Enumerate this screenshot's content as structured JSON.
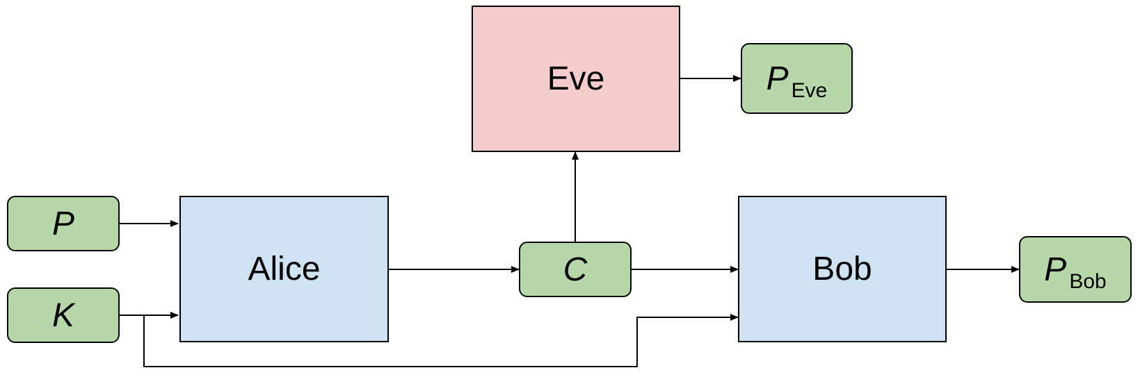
{
  "colors": {
    "agent_good": "#cfe2f3",
    "agent_adversary": "#f4cccc",
    "token": "#b6d7a8",
    "stroke": "#000000"
  },
  "nodes": {
    "alice": {
      "label": "Alice"
    },
    "bob": {
      "label": "Bob"
    },
    "eve": {
      "label": "Eve"
    },
    "plaintext": {
      "label": "P"
    },
    "key": {
      "label": "K"
    },
    "ciphertext": {
      "label": "C"
    },
    "p_eve": {
      "label": "P",
      "sub": "Eve"
    },
    "p_bob": {
      "label": "P",
      "sub": "Bob"
    }
  },
  "edges": [
    {
      "from": "plaintext",
      "to": "alice"
    },
    {
      "from": "key",
      "to": "alice"
    },
    {
      "from": "key",
      "to": "bob"
    },
    {
      "from": "alice",
      "to": "ciphertext"
    },
    {
      "from": "ciphertext",
      "to": "bob"
    },
    {
      "from": "ciphertext",
      "to": "eve"
    },
    {
      "from": "eve",
      "to": "p_eve"
    },
    {
      "from": "bob",
      "to": "p_bob"
    }
  ]
}
